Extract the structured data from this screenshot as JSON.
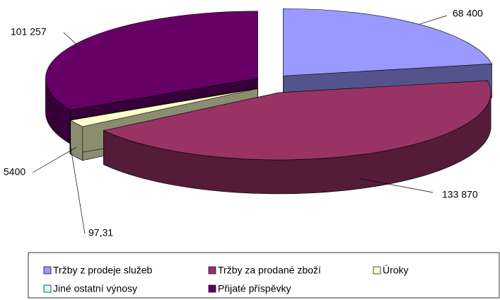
{
  "chart_data": {
    "type": "pie",
    "categories": [
      "Tržby z prodeje služeb",
      "Tržby za prodané zboží",
      "Úroky",
      "Jiné ostatní výnosy",
      "Přijaté příspěvky"
    ],
    "values": [
      68400,
      133870,
      5400,
      97.31,
      101257
    ],
    "value_labels": [
      "68 400",
      "133 870",
      "5400",
      "97,31",
      "101 257"
    ],
    "colors": [
      "#9999ff",
      "#993366",
      "#ffffcc",
      "#ccffff",
      "#660066"
    ],
    "legend": "bottom"
  }
}
